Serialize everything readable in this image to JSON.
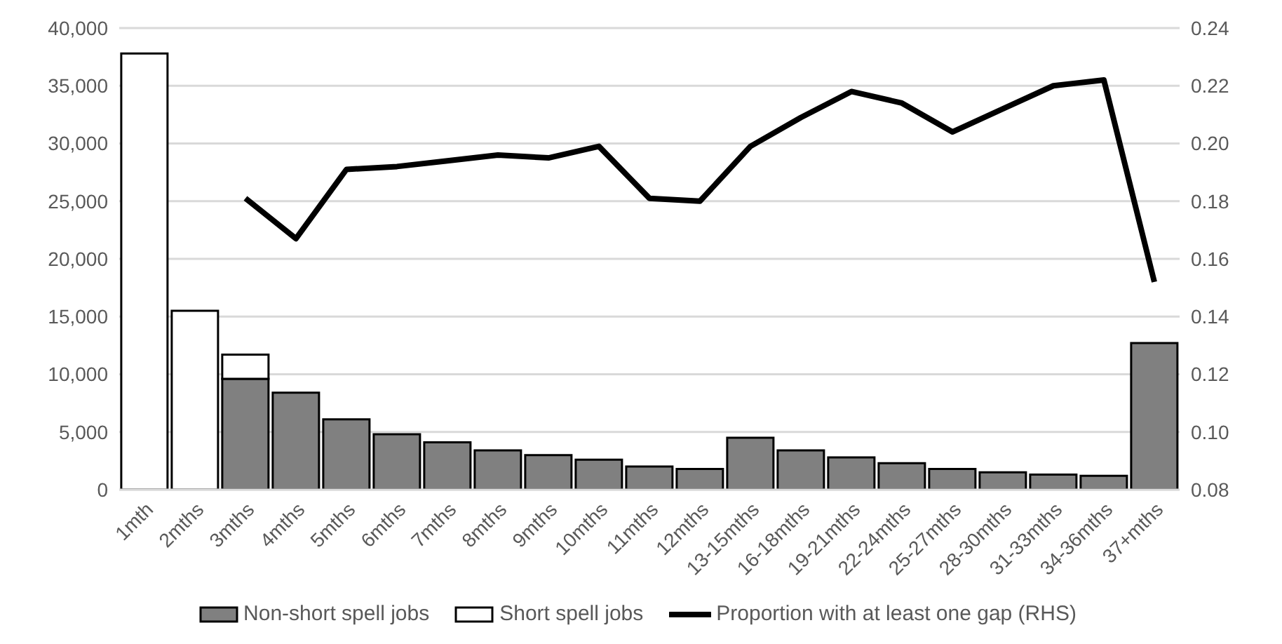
{
  "chart_data": {
    "type": "bar",
    "stacked": true,
    "categories": [
      "1mth",
      "2mths",
      "3mths",
      "4mths",
      "5mths",
      "6mths",
      "7mths",
      "8mths",
      "9mths",
      "10mths",
      "11mths",
      "12mths",
      "13-15mths",
      "16-18mths",
      "19-21mths",
      "22-24mths",
      "25-27mths",
      "28-30mths",
      "31-33mths",
      "34-36mths",
      "37+mths"
    ],
    "series": [
      {
        "name": "Non-short spell jobs",
        "color": "#808080",
        "values": [
          null,
          null,
          9600,
          8400,
          6100,
          4800,
          4100,
          3400,
          3000,
          2600,
          2000,
          1800,
          4500,
          3400,
          2800,
          2300,
          1800,
          1500,
          1300,
          1200,
          12700
        ]
      },
      {
        "name": "Short spell jobs",
        "color": "#ffffff",
        "values": [
          37800,
          15500,
          2100,
          null,
          null,
          null,
          null,
          null,
          null,
          null,
          null,
          null,
          null,
          null,
          null,
          null,
          null,
          null,
          null,
          null,
          null
        ]
      },
      {
        "name": "Proportion with at least one gap (RHS)",
        "type": "line",
        "axis": "y2",
        "color": "#000000",
        "values": [
          null,
          null,
          0.181,
          0.167,
          0.191,
          0.192,
          0.194,
          0.196,
          0.195,
          0.199,
          0.181,
          0.18,
          0.199,
          0.209,
          0.218,
          0.214,
          0.204,
          0.212,
          0.22,
          0.222,
          0.152
        ]
      }
    ],
    "ylim": [
      0,
      40000
    ],
    "yticks": [
      {
        "value": 0,
        "label": "0"
      },
      {
        "value": 5000,
        "label": "5,000"
      },
      {
        "value": 10000,
        "label": "10,000"
      },
      {
        "value": 15000,
        "label": "15,000"
      },
      {
        "value": 20000,
        "label": "20,000"
      },
      {
        "value": 25000,
        "label": "25,000"
      },
      {
        "value": 30000,
        "label": "30,000"
      },
      {
        "value": 35000,
        "label": "35,000"
      },
      {
        "value": 40000,
        "label": "40,000"
      }
    ],
    "y2lim": [
      0.08,
      0.24
    ],
    "y2ticks": [
      {
        "value": 0.08,
        "label": "0.08"
      },
      {
        "value": 0.1,
        "label": "0.10"
      },
      {
        "value": 0.12,
        "label": "0.12"
      },
      {
        "value": 0.14,
        "label": "0.14"
      },
      {
        "value": 0.16,
        "label": "0.16"
      },
      {
        "value": 0.18,
        "label": "0.18"
      },
      {
        "value": 0.2,
        "label": "0.20"
      },
      {
        "value": 0.22,
        "label": "0.22"
      },
      {
        "value": 0.24,
        "label": "0.24"
      }
    ],
    "grid": "y",
    "legend": "bottom",
    "marker": "none",
    "line_style": "solid"
  }
}
